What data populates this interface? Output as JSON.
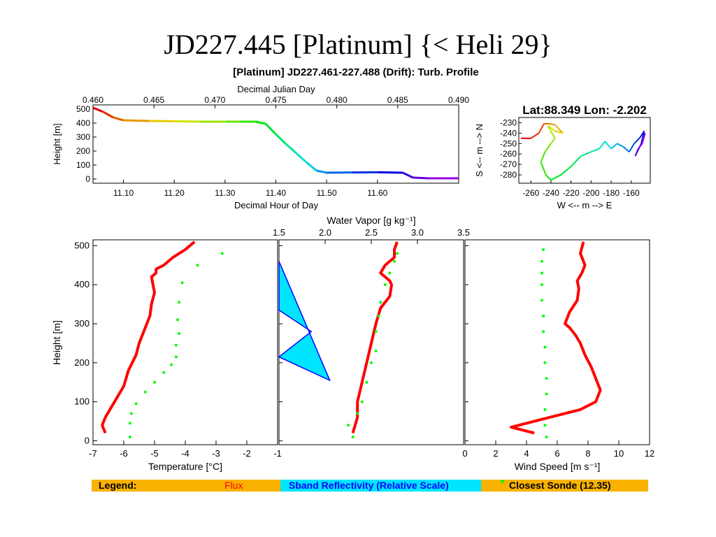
{
  "slide_title": "JD227.445 [Platinum] {< Heli 29}",
  "colors": {
    "flux": "#ff0000",
    "sonde": "#00ff00",
    "sband_fill": "#00e5ff",
    "sband_line": "#0000ff",
    "legend_bg": "#f9b200"
  },
  "chart_data": [
    {
      "id": "altitude_time",
      "type": "line",
      "title": "[Platinum] JD227.461-227.488 (Drift): Turb. Profile",
      "top_axis_label": "Decimal Julian Day",
      "top_ticks": [
        "0.460",
        "0.465",
        "0.470",
        "0.475",
        "0.480",
        "0.485",
        "0.490"
      ],
      "top_range": [
        0.46,
        0.49
      ],
      "xlabel": "Decimal Hour of Day",
      "x_ticks": [
        "11.10",
        "11.20",
        "11.30",
        "11.40",
        "11.50",
        "11.60"
      ],
      "xlim": [
        11.04,
        11.76
      ],
      "ylabel": "Height [m]",
      "y_ticks": [
        "0",
        "100",
        "200",
        "300",
        "400",
        "500"
      ],
      "ylim": [
        -30,
        530
      ],
      "x": [
        11.04,
        11.06,
        11.08,
        11.1,
        11.15,
        11.2,
        11.25,
        11.3,
        11.33,
        11.36,
        11.38,
        11.4,
        11.42,
        11.44,
        11.46,
        11.48,
        11.5,
        11.55,
        11.6,
        11.65,
        11.67,
        11.7,
        11.76
      ],
      "y": [
        510,
        480,
        440,
        420,
        415,
        413,
        410,
        410,
        410,
        410,
        395,
        320,
        250,
        185,
        120,
        60,
        45,
        47,
        48,
        45,
        10,
        5,
        5
      ]
    },
    {
      "id": "track",
      "type": "line",
      "title": "Lat:88.349 Lon:  -2.202",
      "xlabel": "W <-- m --> E",
      "x_ticks": [
        "-260",
        "-240",
        "-220",
        "-200",
        "-180",
        "-160"
      ],
      "xlim": [
        -272,
        -141
      ],
      "ylabel": "S <-- m --> N",
      "y_ticks": [
        "-230",
        "-240",
        "-250",
        "-260",
        "-270",
        "-280"
      ],
      "ylim": [
        -288,
        -225
      ],
      "x": [
        -270,
        -260,
        -252,
        -247,
        -242,
        -236,
        -228,
        -236,
        -243,
        -236,
        -240,
        -246,
        -250,
        -245,
        -240,
        -230,
        -220,
        -210,
        -200,
        -192,
        -186,
        -180,
        -174,
        -168,
        -162,
        -157,
        -151,
        -147,
        -150,
        -156,
        -153,
        -149,
        -146
      ],
      "y": [
        -245,
        -245,
        -240,
        -231,
        -231,
        -232,
        -240,
        -238,
        -233,
        -245,
        -250,
        -258,
        -268,
        -280,
        -285,
        -280,
        -272,
        -262,
        -258,
        -255,
        -248,
        -255,
        -250,
        -253,
        -258,
        -250,
        -244,
        -238,
        -250,
        -262,
        -255,
        -250,
        -240
      ]
    },
    {
      "id": "temperature",
      "type": "line",
      "xlabel": "Temperature [°C]",
      "x_ticks": [
        "-7",
        "-6",
        "-5",
        "-4",
        "-3",
        "-2",
        "-1"
      ],
      "xlim": [
        -7,
        -1
      ],
      "ylabel": "Height [m]",
      "y_ticks": [
        "0",
        "100",
        "200",
        "300",
        "400",
        "500"
      ],
      "ylim": [
        -10,
        515
      ],
      "series": [
        {
          "name": "Flux",
          "x": [
            -6.6,
            -6.7,
            -6.6,
            -6.45,
            -6.3,
            -6.0,
            -5.85,
            -5.6,
            -5.5,
            -5.3,
            -5.15,
            -5.1,
            -5.0,
            -5.05,
            -5.1,
            -4.95,
            -4.95,
            -4.7,
            -4.4,
            -4.0,
            -3.7
          ],
          "y": [
            20,
            40,
            60,
            80,
            100,
            140,
            180,
            220,
            250,
            290,
            320,
            350,
            380,
            400,
            420,
            430,
            440,
            450,
            470,
            490,
            510
          ]
        },
        {
          "name": "Closest Sonde",
          "x": [
            -5.8,
            -5.8,
            -5.75,
            -5.6,
            -5.3,
            -5.0,
            -4.7,
            -4.45,
            -4.3,
            -4.3,
            -4.2,
            -4.25,
            -4.2,
            -4.1,
            -3.6,
            -2.8
          ],
          "y": [
            10,
            45,
            70,
            95,
            125,
            150,
            175,
            195,
            215,
            245,
            275,
            310,
            355,
            405,
            450,
            480
          ]
        }
      ]
    },
    {
      "id": "water_vapor",
      "type": "line",
      "top_axis_label": "Water Vapor [g kg⁻¹]",
      "top_ticks": [
        "1.5",
        "2.0",
        "2.5",
        "3.0",
        "3.5"
      ],
      "xlim": [
        1.5,
        3.5
      ],
      "ylim": [
        -10,
        515
      ],
      "series": [
        {
          "name": "Flux",
          "x": [
            2.3,
            2.35,
            2.35,
            2.4,
            2.45,
            2.5,
            2.55,
            2.6,
            2.7,
            2.72,
            2.7,
            2.65,
            2.6,
            2.65,
            2.75,
            2.75,
            2.78
          ],
          "y": [
            20,
            60,
            100,
            150,
            200,
            250,
            300,
            340,
            370,
            400,
            410,
            420,
            430,
            450,
            470,
            490,
            510
          ]
        },
        {
          "name": "Closest Sonde",
          "x": [
            2.3,
            2.25,
            2.35,
            2.4,
            2.45,
            2.5,
            2.55,
            2.55,
            2.58,
            2.6,
            2.65,
            2.7,
            2.75,
            2.78
          ],
          "y": [
            10,
            40,
            70,
            100,
            150,
            200,
            230,
            280,
            320,
            355,
            400,
            430,
            460,
            480
          ]
        },
        {
          "name": "Sband Reflectivity (Relative Scale)",
          "x": [
            0,
            0.35,
            0,
            0.55,
            0.55,
            0
          ],
          "y": [
            335,
            280,
            215,
            155,
            155,
            460
          ]
        }
      ]
    },
    {
      "id": "wind_speed",
      "type": "line",
      "xlabel": "Wind Speed [m s⁻¹]",
      "x_ticks": [
        "0",
        "2",
        "4",
        "6",
        "8",
        "10",
        "12"
      ],
      "xlim": [
        0,
        12
      ],
      "ylim": [
        -10,
        515
      ],
      "series": [
        {
          "name": "Flux",
          "x": [
            4.5,
            3.0,
            5.0,
            7.5,
            8.5,
            8.8,
            8.5,
            8.2,
            7.8,
            7.5,
            7.2,
            6.8,
            6.5,
            6.8,
            7.3,
            7.4,
            7.3,
            7.6,
            7.8,
            7.5,
            7.7
          ],
          "y": [
            20,
            35,
            55,
            80,
            100,
            130,
            160,
            190,
            220,
            250,
            270,
            290,
            300,
            330,
            360,
            390,
            410,
            430,
            450,
            480,
            510
          ]
        },
        {
          "name": "Closest Sonde",
          "x": [
            5.3,
            5.2,
            5.2,
            5.3,
            5.3,
            5.2,
            5.2,
            5.1,
            5.1,
            5.0,
            5.0,
            5.0,
            5.0,
            5.1
          ],
          "y": [
            10,
            40,
            80,
            120,
            160,
            200,
            240,
            280,
            320,
            360,
            400,
            430,
            460,
            490
          ]
        }
      ]
    }
  ],
  "legend": {
    "label": "Legend:",
    "flux": "Flux",
    "sband": "Sband Reflectivity (Relative Scale)",
    "sonde": "Closest Sonde (12.35)"
  }
}
